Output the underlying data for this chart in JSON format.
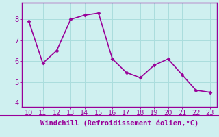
{
  "x": [
    10,
    11,
    12,
    13,
    14,
    15,
    16,
    17,
    18,
    19,
    20,
    21,
    22,
    23
  ],
  "y": [
    7.9,
    5.9,
    6.5,
    8.0,
    8.2,
    8.3,
    6.1,
    5.45,
    5.2,
    5.8,
    6.1,
    5.35,
    4.6,
    4.5
  ],
  "line_color": "#990099",
  "marker": "D",
  "marker_size": 2.5,
  "bg_color": "#cff0f0",
  "grid_color": "#aadddd",
  "xlabel": "Windchill (Refroidissement éolien,°C)",
  "xlabel_color": "#990099",
  "xlabel_fontsize": 7.5,
  "xlim": [
    9.5,
    23.5
  ],
  "ylim": [
    3.8,
    8.8
  ],
  "xticks": [
    10,
    11,
    12,
    13,
    14,
    15,
    16,
    17,
    18,
    19,
    20,
    21,
    22,
    23
  ],
  "yticks": [
    4,
    5,
    6,
    7,
    8
  ],
  "tick_color": "#990099",
  "tick_fontsize": 7,
  "spine_color": "#990099",
  "linewidth": 1.2
}
